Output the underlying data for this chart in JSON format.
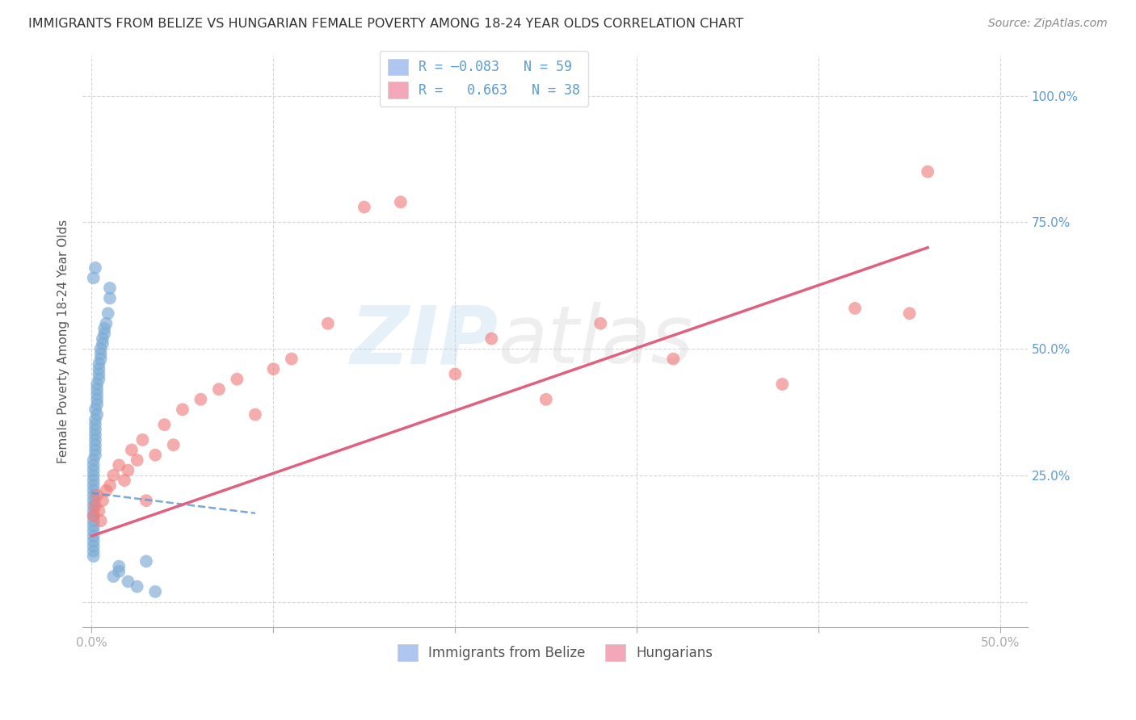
{
  "title": "IMMIGRANTS FROM BELIZE VS HUNGARIAN FEMALE POVERTY AMONG 18-24 YEAR OLDS CORRELATION CHART",
  "source": "Source: ZipAtlas.com",
  "ylabel": "Female Poverty Among 18-24 Year Olds",
  "x_tick_vals": [
    0.0,
    0.1,
    0.2,
    0.3,
    0.4,
    0.5
  ],
  "x_tick_labels": [
    "0.0%",
    "",
    "",
    "",
    "",
    "50.0%"
  ],
  "y_tick_vals": [
    0.0,
    0.25,
    0.5,
    0.75,
    1.0
  ],
  "y_tick_labels": [
    "",
    "25.0%",
    "50.0%",
    "75.0%",
    "100.0%"
  ],
  "xlim": [
    -0.005,
    0.515
  ],
  "ylim": [
    -0.05,
    1.08
  ],
  "belize_color": "#7baad4",
  "hungarian_color": "#f08080",
  "belize_trend_color": "#6699cc",
  "hungarian_trend_color": "#e06080",
  "legend_patch_belize": "#aec6f0",
  "legend_patch_hungarian": "#f4a7b9",
  "grid_color": "#cccccc",
  "bg_color": "#ffffff",
  "belize_x": [
    0.001,
    0.001,
    0.001,
    0.001,
    0.001,
    0.001,
    0.001,
    0.001,
    0.001,
    0.001,
    0.001,
    0.001,
    0.001,
    0.001,
    0.001,
    0.001,
    0.001,
    0.001,
    0.001,
    0.001,
    0.002,
    0.002,
    0.002,
    0.002,
    0.002,
    0.002,
    0.002,
    0.002,
    0.002,
    0.003,
    0.003,
    0.003,
    0.003,
    0.003,
    0.003,
    0.004,
    0.004,
    0.004,
    0.004,
    0.005,
    0.005,
    0.005,
    0.006,
    0.006,
    0.007,
    0.007,
    0.008,
    0.009,
    0.01,
    0.01,
    0.012,
    0.015,
    0.015,
    0.02,
    0.025,
    0.03,
    0.035,
    0.001,
    0.002
  ],
  "belize_y": [
    0.22,
    0.2,
    0.18,
    0.24,
    0.16,
    0.14,
    0.12,
    0.1,
    0.21,
    0.19,
    0.23,
    0.17,
    0.15,
    0.13,
    0.11,
    0.09,
    0.25,
    0.26,
    0.27,
    0.28,
    0.3,
    0.32,
    0.33,
    0.35,
    0.29,
    0.31,
    0.34,
    0.36,
    0.38,
    0.37,
    0.39,
    0.4,
    0.41,
    0.42,
    0.43,
    0.44,
    0.45,
    0.46,
    0.47,
    0.48,
    0.49,
    0.5,
    0.51,
    0.52,
    0.53,
    0.54,
    0.55,
    0.57,
    0.6,
    0.62,
    0.05,
    0.06,
    0.07,
    0.04,
    0.03,
    0.08,
    0.02,
    0.64,
    0.66
  ],
  "hungarian_x": [
    0.001,
    0.002,
    0.003,
    0.004,
    0.005,
    0.006,
    0.008,
    0.01,
    0.012,
    0.015,
    0.018,
    0.02,
    0.022,
    0.025,
    0.028,
    0.03,
    0.035,
    0.04,
    0.045,
    0.05,
    0.06,
    0.07,
    0.08,
    0.09,
    0.1,
    0.11,
    0.13,
    0.15,
    0.17,
    0.2,
    0.22,
    0.25,
    0.28,
    0.32,
    0.38,
    0.42,
    0.45,
    0.46
  ],
  "hungarian_y": [
    0.17,
    0.19,
    0.21,
    0.18,
    0.16,
    0.2,
    0.22,
    0.23,
    0.25,
    0.27,
    0.24,
    0.26,
    0.3,
    0.28,
    0.32,
    0.2,
    0.29,
    0.35,
    0.31,
    0.38,
    0.4,
    0.42,
    0.44,
    0.37,
    0.46,
    0.48,
    0.55,
    0.78,
    0.79,
    0.45,
    0.52,
    0.4,
    0.55,
    0.48,
    0.43,
    0.58,
    0.57,
    0.85
  ],
  "belize_trend_x0": 0.0,
  "belize_trend_x1": 0.09,
  "belize_trend_y0": 0.215,
  "belize_trend_y1": 0.175,
  "hung_trend_x0": 0.0,
  "hung_trend_x1": 0.46,
  "hung_trend_y0": 0.13,
  "hung_trend_y1": 0.7
}
